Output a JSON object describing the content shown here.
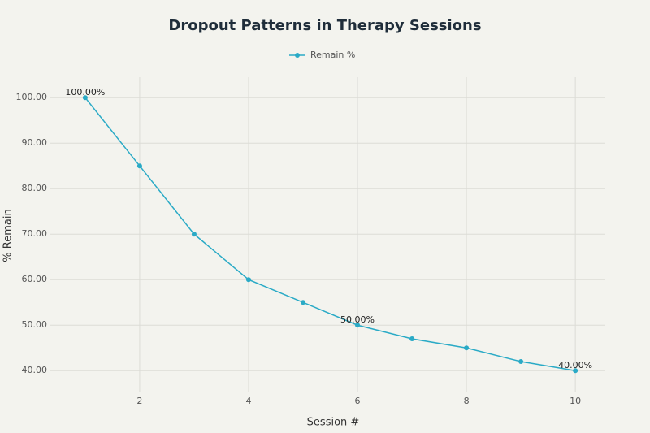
{
  "chart_data": {
    "type": "line",
    "title": "Dropout Patterns in Therapy Sessions",
    "x_label": "Session #",
    "y_label": "% Remain",
    "x": [
      1,
      2,
      3,
      4,
      5,
      6,
      7,
      8,
      9,
      10
    ],
    "series": [
      {
        "name": "Remain %",
        "color": "#2aaac6",
        "values": [
          100,
          85,
          70,
          60,
          55,
          50,
          47,
          45,
          42,
          40
        ],
        "value_labels": [
          "100.00%",
          null,
          null,
          null,
          null,
          "50.00%",
          null,
          null,
          null,
          "40.00%"
        ]
      }
    ],
    "xlim": [
      0.36,
      10.55
    ],
    "xticks": [
      2,
      4,
      6,
      8,
      10
    ],
    "ylim": [
      35.4,
      104.5
    ],
    "yticks": [
      {
        "value": 40,
        "label": "40.00"
      },
      {
        "value": 50,
        "label": "50.00"
      },
      {
        "value": 60,
        "label": "60.00"
      },
      {
        "value": 70,
        "label": "70.00"
      },
      {
        "value": 80,
        "label": "80.00"
      },
      {
        "value": 90,
        "label": "90.00"
      },
      {
        "value": 100,
        "label": "100.00"
      }
    ],
    "grid": true,
    "legend": "top"
  }
}
